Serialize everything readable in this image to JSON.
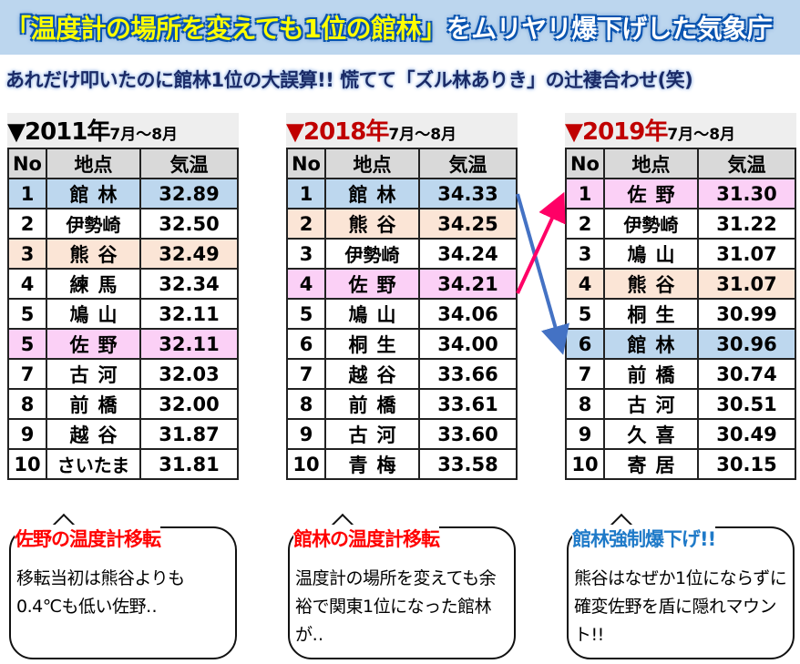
{
  "title": {
    "highlight": "「温度計の場所を変えても1位の館林」",
    "rest": "をムリヤリ爆下げした気象庁"
  },
  "subtitle": "あれだけ叩いたのに館林1位の大誤算!! 慌てて「ズル林ありき」の辻褄合わせ(笑)",
  "columns": [
    "No",
    "地点",
    "気温"
  ],
  "tables": [
    {
      "year": "▼2011年",
      "months": "7月～8月",
      "year_color": "#000000",
      "rows": [
        [
          "1",
          "館林",
          "32.89",
          "blue"
        ],
        [
          "2",
          "伊勢崎",
          "32.50",
          ""
        ],
        [
          "3",
          "熊谷",
          "32.49",
          "orange"
        ],
        [
          "4",
          "練馬",
          "32.34",
          ""
        ],
        [
          "5",
          "鳩山",
          "32.11",
          ""
        ],
        [
          "5",
          "佐野",
          "32.11",
          "pink"
        ],
        [
          "7",
          "古河",
          "32.03",
          ""
        ],
        [
          "8",
          "前橋",
          "32.00",
          ""
        ],
        [
          "9",
          "越谷",
          "31.87",
          ""
        ],
        [
          "10",
          "さいたま",
          "31.81",
          ""
        ]
      ]
    },
    {
      "year": "▼2018年",
      "months": "7月～8月",
      "year_color": "#c00000",
      "rows": [
        [
          "1",
          "館林",
          "34.33",
          "blue"
        ],
        [
          "2",
          "熊谷",
          "34.25",
          "orange"
        ],
        [
          "3",
          "伊勢崎",
          "34.24",
          ""
        ],
        [
          "4",
          "佐野",
          "34.21",
          "pink"
        ],
        [
          "5",
          "鳩山",
          "34.06",
          ""
        ],
        [
          "6",
          "桐生",
          "34.00",
          ""
        ],
        [
          "7",
          "越谷",
          "33.66",
          ""
        ],
        [
          "8",
          "前橋",
          "33.61",
          ""
        ],
        [
          "9",
          "古河",
          "33.60",
          ""
        ],
        [
          "10",
          "青梅",
          "33.58",
          ""
        ]
      ]
    },
    {
      "year": "▼2019年",
      "months": "7月～8月",
      "year_color": "#c00000",
      "rows": [
        [
          "1",
          "佐野",
          "31.30",
          "pink"
        ],
        [
          "2",
          "伊勢崎",
          "31.22",
          ""
        ],
        [
          "3",
          "鳩山",
          "31.07",
          ""
        ],
        [
          "4",
          "熊谷",
          "31.07",
          "orange"
        ],
        [
          "5",
          "桐生",
          "30.99",
          ""
        ],
        [
          "6",
          "館林",
          "30.96",
          "blue"
        ],
        [
          "7",
          "前橋",
          "30.74",
          ""
        ],
        [
          "8",
          "古河",
          "30.51",
          ""
        ],
        [
          "9",
          "久喜",
          "30.49",
          ""
        ],
        [
          "10",
          "寄居",
          "30.15",
          ""
        ]
      ]
    }
  ],
  "bubbles": [
    {
      "title": "佐野の温度計移転",
      "title_color": "#ff0000",
      "body": "移転当初は熊谷よりも0.4℃も低い佐野‥"
    },
    {
      "title": "館林の温度計移転",
      "title_color": "#ff0000",
      "body": "温度計の場所を変えても余裕で関東1位になった館林が‥"
    },
    {
      "title": "館林強制爆下げ!!",
      "title_color": "#1f7ac8",
      "body": "熊谷はなぜか1位にならずに確変佐野を盾に隠れマウント!!"
    }
  ],
  "colors": {
    "blue": "#bdd7ee",
    "orange": "#fbe5d6",
    "pink": "#fbd0f6",
    "arrow_tatebayashi": "#4472c4",
    "arrow_sano": "#ff0066"
  }
}
